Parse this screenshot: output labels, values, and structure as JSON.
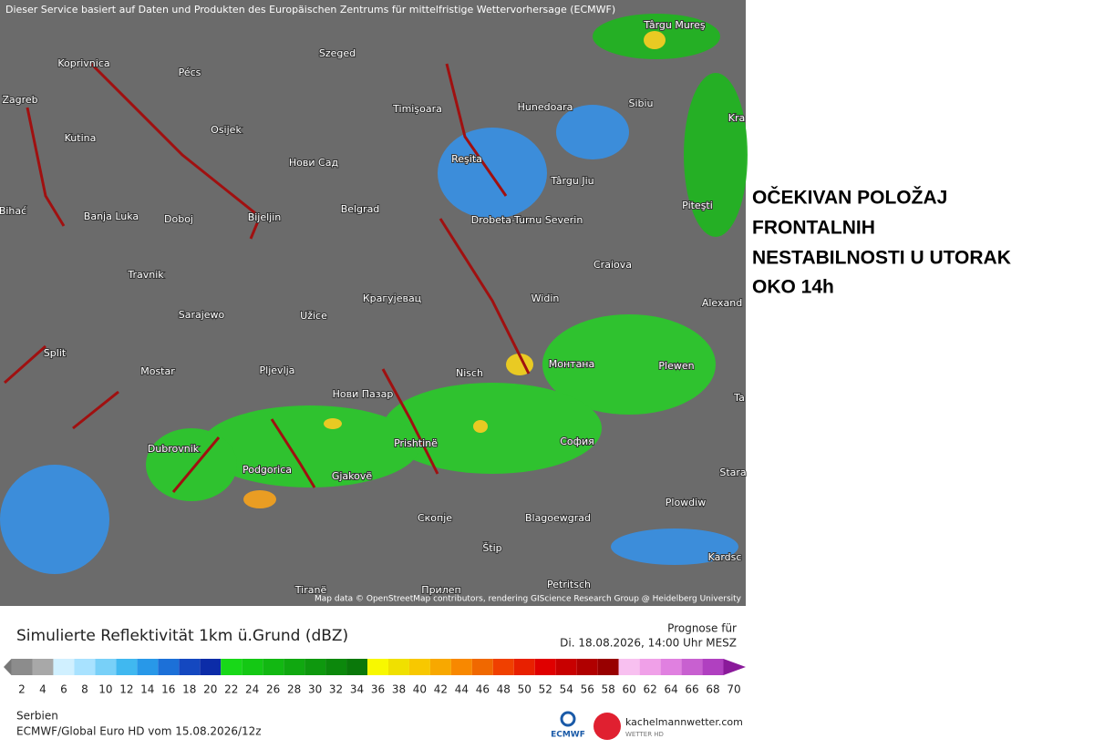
{
  "map": {
    "attribution_top": "Dieser Service basiert auf Daten und Produkten des Europäischen Zentrums für mittelfristige Wettervorhersage (ECMWF)",
    "credit": "Map data © OpenStreetMap contributors, rendering GIScience Research Group @ Heidelberg University",
    "cities": [
      "Koprivnica",
      "Pécs",
      "Szeged",
      "Timişoara",
      "Hunedoara",
      "Sibiu",
      "Târgu Mureş",
      "Zagreb",
      "Kutina",
      "Osijek",
      "Нови Сад",
      "Reşita",
      "Târgu Jiu",
      "Bihać",
      "Banja Luka",
      "Doboj",
      "Bijeljin",
      "Belgrad",
      "Drobeta-Turnu Severin",
      "Piteşti",
      "Travnik",
      "Craiova",
      "Крагујевац",
      "Sarajewo",
      "Užice",
      "Widin",
      "Alexand",
      "Split",
      "Mostar",
      "Pljevlja",
      "Nisch",
      "Монтана",
      "Plewen",
      "Нови Пазар",
      "Dubrovnik",
      "Prishtinë",
      "София",
      "Podgorica",
      "Gjakovë",
      "Stara",
      "Plowdiw",
      "Скопје",
      "Blagoewgrad",
      "Štip",
      "Tiranë",
      "Прилеп",
      "Petritsch",
      "Kardsc",
      "Kra",
      "Ta"
    ]
  },
  "note": {
    "lines": [
      "OČEKIVAN POLOŽAJ",
      "FRONTALNIH",
      "NESTABILNOSTI U UTORAK",
      "OKO 14h"
    ]
  },
  "legend": {
    "title": "Simulierte Reflektivität 1km ü.Grund (dBZ)",
    "forecast_label": "Prognose für",
    "forecast_time": "Di. 18.08.2026, 14:00 Uhr MESZ",
    "ticks": [
      2,
      4,
      6,
      8,
      10,
      12,
      14,
      16,
      18,
      20,
      22,
      24,
      26,
      28,
      30,
      32,
      34,
      36,
      38,
      40,
      42,
      44,
      46,
      48,
      50,
      52,
      54,
      56,
      58,
      60,
      62,
      64,
      66,
      68,
      70
    ]
  },
  "footer": {
    "region": "Serbien",
    "model": "ECMWF/Global Euro HD vom  15.08.2026/12z",
    "ecmwf": "ECMWF",
    "site": "kachelmannwetter.com",
    "site_sub": "WETTER HD"
  }
}
